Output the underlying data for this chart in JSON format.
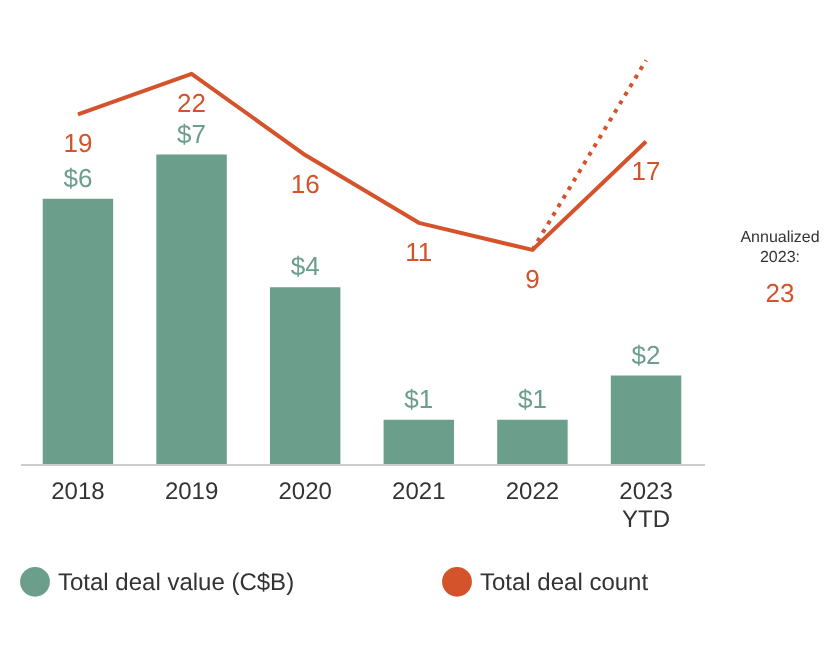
{
  "chart_data": {
    "type": "bar",
    "categories": [
      "2018",
      "2019",
      "2020",
      "2021",
      "2022",
      "2023 YTD"
    ],
    "series": [
      {
        "name": "Total deal value (C$B)",
        "color": "#6b9e8b",
        "values": [
          6,
          7,
          4,
          1,
          1,
          2
        ],
        "value_labels": [
          "$6",
          "$7",
          "$4",
          "$1",
          "$1",
          "$2"
        ]
      },
      {
        "name": "Total deal count",
        "type": "line",
        "axis": "y2",
        "color": "#d4532b",
        "values": [
          19,
          22,
          16,
          11,
          9,
          17
        ],
        "value_labels": [
          "19",
          "22",
          "16",
          "11",
          "9",
          "17"
        ]
      },
      {
        "type": "line",
        "axis": "y2",
        "color": "#d4532b",
        "line_style": "dotted",
        "values": [
          null,
          null,
          null,
          null,
          9,
          23
        ]
      }
    ],
    "tick_labels": "x",
    "grid": false,
    "legend": "bottom",
    "annotations": [
      "Annualized 2023:",
      "23"
    ]
  }
}
